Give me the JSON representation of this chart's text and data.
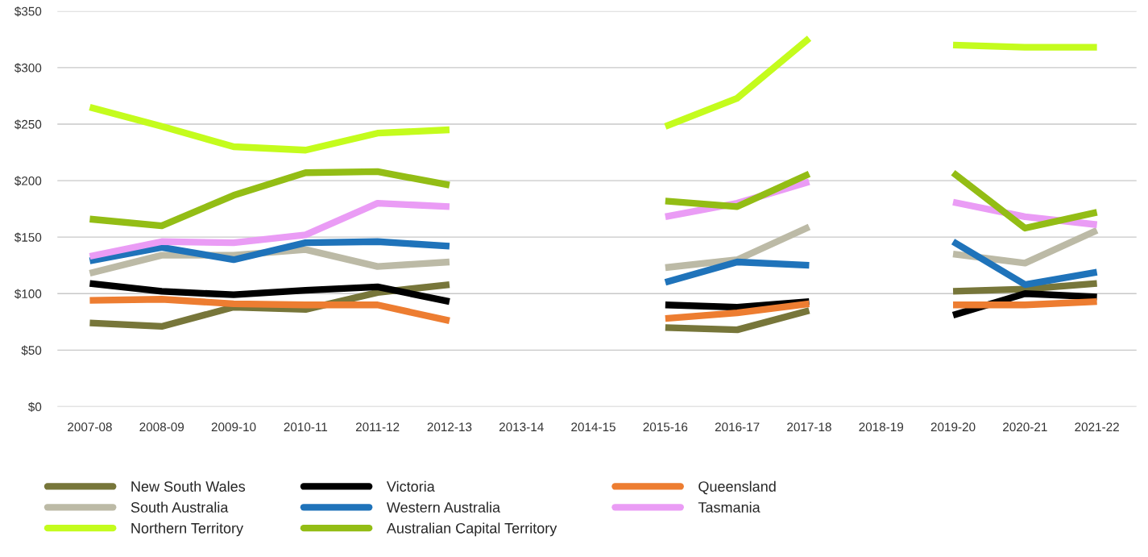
{
  "chart_data": {
    "type": "line",
    "categories": [
      "2007-08",
      "2008-09",
      "2009-10",
      "2010-11",
      "2011-12",
      "2012-13",
      "2013-14",
      "2014-15",
      "2015-16",
      "2016-17",
      "2017-18",
      "2018-19",
      "2019-20",
      "2020-21",
      "2021-22"
    ],
    "series": [
      {
        "name": "New South Wales",
        "color": "#77763a",
        "values": [
          74,
          71,
          88,
          86,
          101,
          108,
          null,
          null,
          70,
          68,
          85,
          null,
          102,
          104,
          109
        ]
      },
      {
        "name": "Victoria",
        "color": "#000000",
        "values": [
          109,
          102,
          99,
          103,
          106,
          93,
          null,
          null,
          90,
          88,
          93,
          null,
          81,
          100,
          97
        ]
      },
      {
        "name": "Queensland",
        "color": "#ed7d31",
        "values": [
          94,
          95,
          91,
          90,
          90,
          76,
          null,
          null,
          78,
          83,
          91,
          null,
          90,
          90,
          93
        ]
      },
      {
        "name": "South Australia",
        "color": "#bcbaa6",
        "values": [
          118,
          134,
          134,
          139,
          124,
          128,
          null,
          null,
          123,
          130,
          159,
          null,
          135,
          127,
          156
        ]
      },
      {
        "name": "Western Australia",
        "color": "#1f73ba",
        "values": [
          129,
          141,
          130,
          145,
          146,
          142,
          null,
          null,
          110,
          128,
          125,
          null,
          146,
          108,
          119
        ]
      },
      {
        "name": "Tasmania",
        "color": "#ea9cf5",
        "values": [
          133,
          146,
          145,
          152,
          180,
          177,
          null,
          null,
          168,
          180,
          199,
          null,
          181,
          168,
          161
        ]
      },
      {
        "name": "Northern Territory",
        "color": "#c4fc1d",
        "values": [
          265,
          248,
          230,
          227,
          242,
          245,
          null,
          null,
          248,
          273,
          326,
          null,
          320,
          318,
          318
        ]
      },
      {
        "name": "Australian Capital Territory",
        "color": "#93bd15",
        "values": [
          166,
          160,
          187,
          207,
          208,
          196,
          null,
          null,
          182,
          177,
          206,
          null,
          207,
          158,
          172
        ]
      }
    ],
    "ylim": [
      0,
      350
    ],
    "yticks": [
      {
        "value": 0,
        "label": "$0"
      },
      {
        "value": 50,
        "label": "$50"
      },
      {
        "value": 100,
        "label": "$100"
      },
      {
        "value": 150,
        "label": "$150"
      },
      {
        "value": 200,
        "label": "$200"
      },
      {
        "value": 250,
        "label": "$250"
      },
      {
        "value": 300,
        "label": "$300"
      },
      {
        "value": 350,
        "label": "$350"
      }
    ],
    "grid": "y",
    "legend": "bottom",
    "marker": "none",
    "line_style": "solid"
  }
}
